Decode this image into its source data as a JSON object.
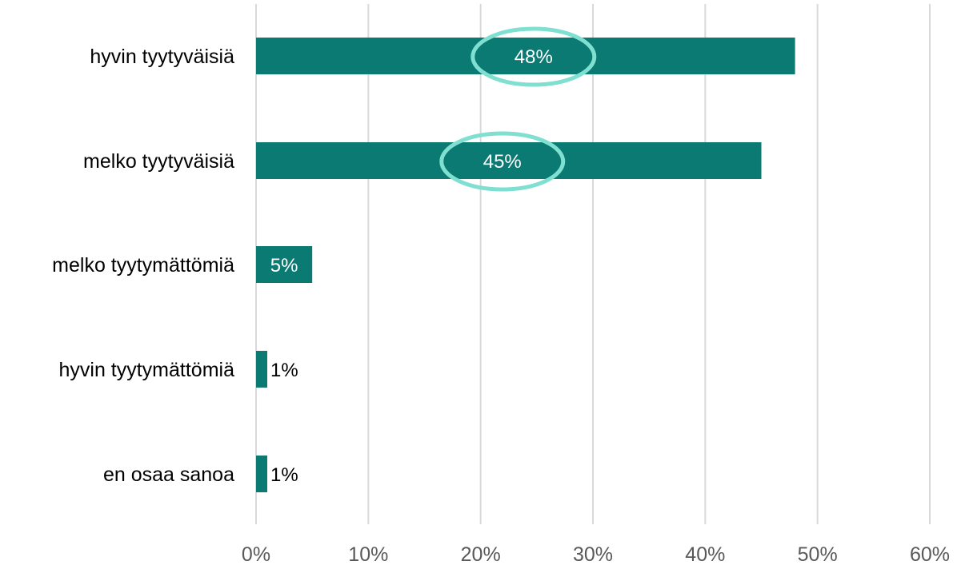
{
  "chart_data": {
    "type": "bar",
    "orientation": "horizontal",
    "categories": [
      "hyvin tyytyväisiä",
      "melko tyytyväisiä",
      "melko tyytymättömiä",
      "hyvin tyytymättömiä",
      "en osaa sanoa"
    ],
    "values": [
      48,
      45,
      5,
      1,
      1
    ],
    "data_labels": [
      "48%",
      "45%",
      "5%",
      "1%",
      "1%"
    ],
    "highlighted_categories": [
      "hyvin tyytyväisiä",
      "melko tyytyväisiä"
    ],
    "xlim": [
      0,
      60
    ],
    "x_ticks": [
      0,
      10,
      20,
      30,
      40,
      50,
      60
    ],
    "x_tick_labels": [
      "0%",
      "10%",
      "20%",
      "30%",
      "40%",
      "50%",
      "60%"
    ],
    "grid": "vertical",
    "title": "",
    "xlabel": "",
    "ylabel": "",
    "colors": {
      "bar": "#0b7a73",
      "highlight_ring": "#7fdfd0",
      "gridline": "#d9d9d9",
      "label_inside": "#ffffff",
      "label_outside": "#000000",
      "tick_text": "#595959"
    }
  }
}
